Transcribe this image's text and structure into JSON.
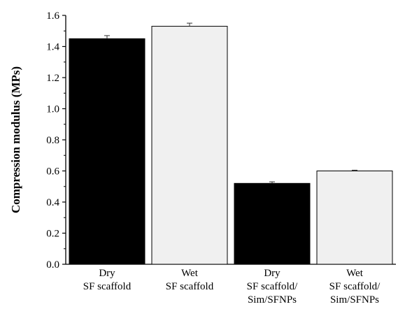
{
  "chart_data": {
    "type": "bar",
    "title": "",
    "xlabel": "",
    "ylabel": "Compression modulus (MPs)",
    "ylim": [
      0.0,
      1.6
    ],
    "yticks": [
      "0.0",
      "0.2",
      "0.4",
      "0.6",
      "0.8",
      "1.0",
      "1.2",
      "1.4",
      "1.6"
    ],
    "categories": [
      [
        "Dry",
        "SF scaffold"
      ],
      [
        "Wet",
        "SF scaffold"
      ],
      [
        "Dry",
        "SF scaffold/",
        "Sim/SFNPs"
      ],
      [
        "Wet",
        "SF scaffold/",
        "Sim/SFNPs"
      ]
    ],
    "values": [
      1.45,
      1.53,
      0.52,
      0.6
    ],
    "errors": [
      0.02,
      0.02,
      0.01,
      0.005
    ],
    "bar_colors": [
      "#000000",
      "#f0f0f0",
      "#000000",
      "#f0f0f0"
    ],
    "grid": false,
    "legend": "none"
  }
}
